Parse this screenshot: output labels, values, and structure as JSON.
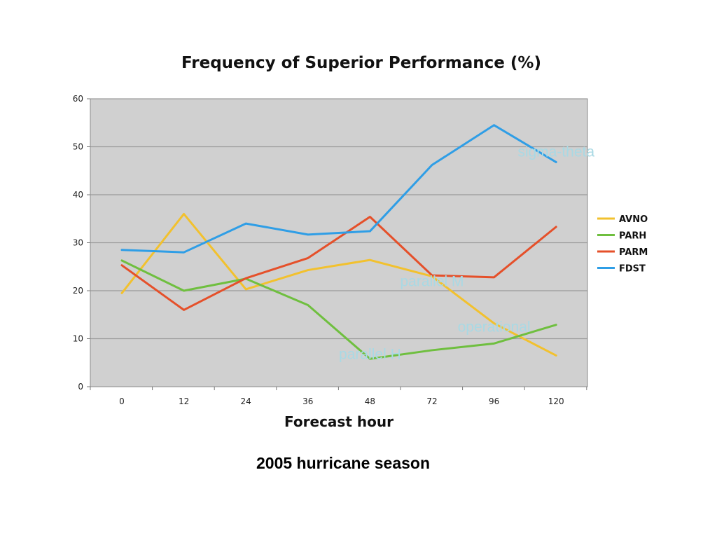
{
  "chart_data": {
    "type": "line",
    "title": "Frequency of Superior Performance (%)",
    "xlabel": "Forecast hour",
    "ylabel": "",
    "categories": [
      "0",
      "12",
      "24",
      "36",
      "48",
      "72",
      "96",
      "120"
    ],
    "ylim": [
      0,
      60
    ],
    "yticks": [
      "0",
      "10",
      "20",
      "30",
      "40",
      "50",
      "60"
    ],
    "grid": true,
    "legend_position": "right",
    "series": [
      {
        "name": "AVNO",
        "color": "#f2c12e",
        "values": [
          19.5,
          36,
          20.3,
          24.3,
          26.4,
          23,
          13.2,
          6.5
        ]
      },
      {
        "name": "PARH",
        "color": "#6fbf3f",
        "values": [
          26.3,
          20,
          22.5,
          17,
          5.8,
          7.6,
          9,
          12.9
        ]
      },
      {
        "name": "PARM",
        "color": "#e5502a",
        "values": [
          25.3,
          16,
          22.6,
          26.8,
          35.4,
          23.2,
          22.8,
          33.3
        ]
      },
      {
        "name": "FDST",
        "color": "#2f9ee6",
        "values": [
          28.5,
          28,
          34,
          31.7,
          32.4,
          46.2,
          54.5,
          46.8
        ]
      }
    ],
    "annotations": [
      {
        "text": "sigma-theta",
        "category": "120",
        "y": 49
      },
      {
        "text": "parallel M",
        "category": "72",
        "y": 22
      },
      {
        "text": "operational",
        "category": "96",
        "y": 12.5
      },
      {
        "text": "parallel H",
        "category": "48",
        "y": 6.8
      }
    ]
  },
  "caption": "2005 hurricane season"
}
